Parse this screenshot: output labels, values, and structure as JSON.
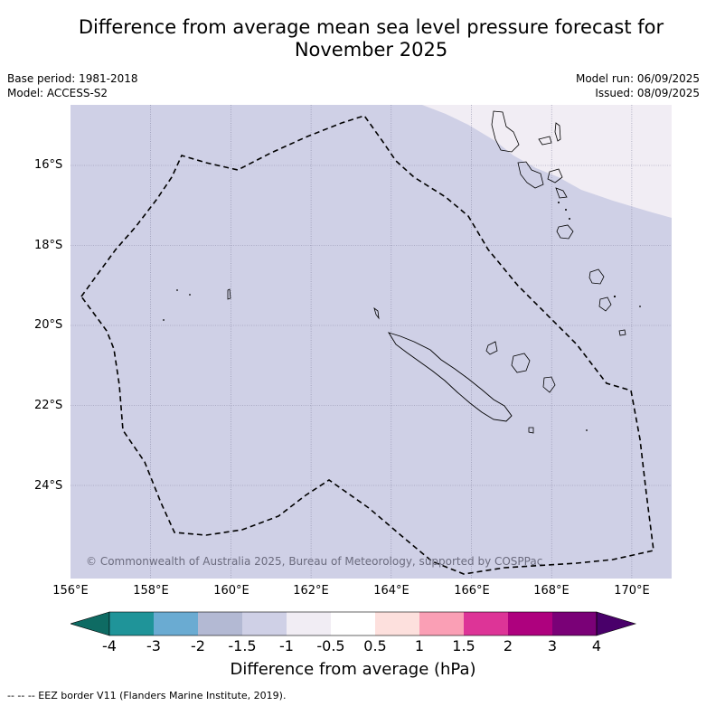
{
  "title_line1": "Difference from average mean sea level pressure forecast for",
  "title_line2": "November 2025",
  "base_period": "Base period: 1981-2018",
  "model": "Model: ACCESS-S2",
  "model_run": "Model run: 06/09/2025",
  "issued": "Issued: 08/09/2025",
  "copyright": "© Commonwealth of Australia 2025, Bureau of Meteorology, supported by COSPPac",
  "latitude_labels": [
    "16°S",
    "18°S",
    "20°S",
    "22°S",
    "24°S"
  ],
  "longitude_labels": [
    "156°E",
    "158°E",
    "160°E",
    "162°E",
    "164°E",
    "166°E",
    "168°E",
    "170°E"
  ],
  "colorbar": {
    "label": "Difference from average (hPa)",
    "ticks": [
      "-4",
      "-3",
      "-2",
      "-1.5",
      "-1",
      "-0.5",
      "0.5",
      "1",
      "1.5",
      "2",
      "3",
      "4"
    ],
    "colors": [
      "#0e6b63",
      "#1f9499",
      "#6aabd2",
      "#b3b9d3",
      "#cfd0e6",
      "#f1edf4",
      "#ffffff",
      "#fde0dd",
      "#fa9fb5",
      "#dd3497",
      "#ae017e",
      "#7a0177",
      "#49006a"
    ]
  },
  "map_colors": {
    "field_main": "#cfd0e6",
    "field_northeast": "#f1edf4"
  },
  "footer": "--  --  -- EEZ border V11 (Flanders Marine Institute, 2019)."
}
